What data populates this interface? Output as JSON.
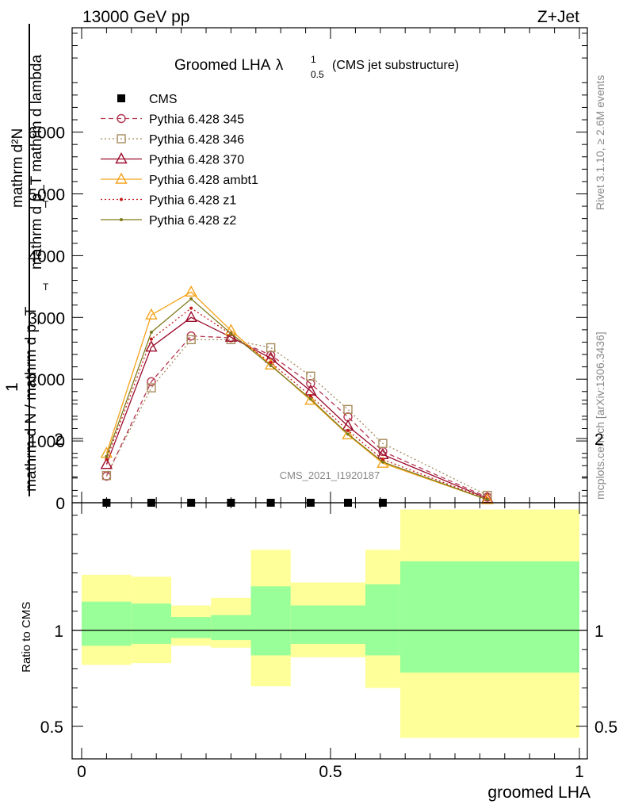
{
  "header": {
    "energy": "13000 GeV pp",
    "process": "Z+Jet"
  },
  "side_labels": {
    "rivet": "Rivet 3.1.10, ≥ 2.6M events",
    "mcplots": "mcplots.cern.ch [arXiv:1306.3436]"
  },
  "chart_data": [
    {
      "type": "line",
      "title": "Groomed LHA",
      "title_symbol": "λ",
      "title_sup": "1",
      "title_sub": "0.5",
      "subtitle": "(CMS jet substructure)",
      "watermark": "CMS_2021_I1920187",
      "ylabel_lines": [
        "mathrm d²N",
        "mathrm d p_T mathrm d lambda",
        "1",
        "mathrm d N / mathrm d p_T"
      ],
      "ylabel_fragments": [
        "T",
        "T"
      ],
      "xlabel": "groomed LHA",
      "xlim": [
        0,
        1
      ],
      "ylim": [
        0,
        7600
      ],
      "ytick_values": [
        0,
        1000,
        2000,
        3000,
        4000,
        5000,
        6000
      ],
      "ytick_labels": [
        "0",
        "1000",
        "2000",
        "3000",
        "4000",
        "5000",
        "6000"
      ],
      "grid": false,
      "legend_position": "top-left",
      "x": [
        0.05,
        0.14,
        0.22,
        0.3,
        0.38,
        0.46,
        0.535,
        0.605,
        0.815
      ],
      "series": [
        {
          "name": "CMS",
          "color": "#000000",
          "style": "marker",
          "marker": "square-filled",
          "values": [
            0,
            0,
            0,
            0,
            0,
            0,
            0,
            0,
            null
          ]
        },
        {
          "name": "Pythia 6.428 345",
          "color": "#b5364f",
          "style": "dashed",
          "marker": "circle-open",
          "values": [
            430,
            1960,
            2700,
            2670,
            2390,
            1930,
            1390,
            830,
            90
          ]
        },
        {
          "name": "Pythia 6.428 346",
          "color": "#a68b5b",
          "style": "dotted",
          "marker": "square-open",
          "values": [
            440,
            1860,
            2640,
            2640,
            2510,
            2050,
            1510,
            960,
            120
          ]
        },
        {
          "name": "Pythia 6.428 370",
          "color": "#9b0b2b",
          "style": "solid",
          "marker": "triangle-open",
          "values": [
            620,
            2520,
            3000,
            2680,
            2340,
            1810,
            1240,
            780,
            70
          ]
        },
        {
          "name": "Pythia 6.428 ambt1",
          "color": "#f5a31a",
          "style": "solid",
          "marker": "triangle-open",
          "values": [
            800,
            3040,
            3410,
            2790,
            2230,
            1660,
            1100,
            640,
            50
          ]
        },
        {
          "name": "Pythia 6.428 z1",
          "color": "#c41a1a",
          "style": "dotted",
          "marker": "dot",
          "values": [
            700,
            2650,
            3150,
            2730,
            2270,
            1730,
            1170,
            700,
            60
          ]
        },
        {
          "name": "Pythia 6.428 z2",
          "color": "#7f7a1a",
          "style": "solid",
          "marker": "dot",
          "values": [
            750,
            2760,
            3300,
            2740,
            2220,
            1680,
            1110,
            660,
            50
          ]
        }
      ]
    },
    {
      "type": "area",
      "ylabel": "Ratio to CMS",
      "xlabel": "groomed LHA",
      "xlim": [
        0,
        1
      ],
      "ylim": [
        0.4,
        2.3
      ],
      "ytick_values": [
        0.5,
        1,
        2
      ],
      "ytick_labels": [
        "0.5",
        "1",
        "2"
      ],
      "xtick_values": [
        0,
        0.5,
        1
      ],
      "xtick_labels": [
        "0",
        "0.5",
        "1"
      ],
      "reference_line": 1,
      "colors": {
        "outer_band": "#ffff99",
        "inner_band": "#99ff99"
      },
      "bins": [
        {
          "lo": 0.0,
          "hi": 0.1,
          "outer": [
            0.82,
            1.29
          ],
          "inner": [
            0.92,
            1.15
          ]
        },
        {
          "lo": 0.1,
          "hi": 0.18,
          "outer": [
            0.83,
            1.28
          ],
          "inner": [
            0.93,
            1.14
          ]
        },
        {
          "lo": 0.18,
          "hi": 0.26,
          "outer": [
            0.92,
            1.13
          ],
          "inner": [
            0.96,
            1.07
          ]
        },
        {
          "lo": 0.26,
          "hi": 0.34,
          "outer": [
            0.91,
            1.17
          ],
          "inner": [
            0.95,
            1.08
          ]
        },
        {
          "lo": 0.34,
          "hi": 0.42,
          "outer": [
            0.71,
            1.42
          ],
          "inner": [
            0.87,
            1.23
          ]
        },
        {
          "lo": 0.42,
          "hi": 0.5,
          "outer": [
            0.86,
            1.25
          ],
          "inner": [
            0.93,
            1.13
          ]
        },
        {
          "lo": 0.5,
          "hi": 0.57,
          "outer": [
            0.86,
            1.25
          ],
          "inner": [
            0.93,
            1.13
          ]
        },
        {
          "lo": 0.57,
          "hi": 0.64,
          "outer": [
            0.7,
            1.42
          ],
          "inner": [
            0.87,
            1.24
          ]
        },
        {
          "lo": 0.64,
          "hi": 1.0,
          "outer": [
            0.44,
            1.63
          ],
          "inner": [
            0.78,
            1.36
          ]
        }
      ]
    }
  ]
}
